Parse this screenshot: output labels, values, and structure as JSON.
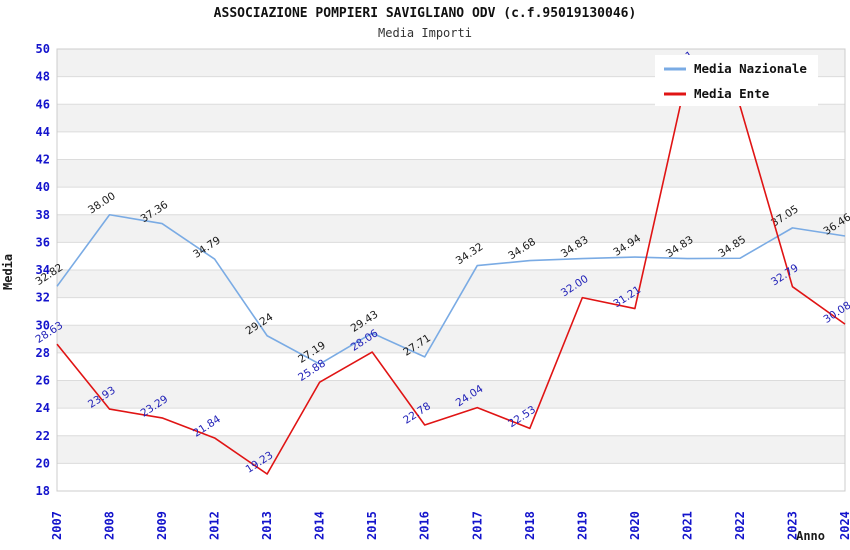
{
  "header": {
    "title": "ASSOCIAZIONE POMPIERI SAVIGLIANO ODV (c.f.95019130046)",
    "subtitle": "Media Importi"
  },
  "legend": {
    "position": "top-right",
    "items": [
      {
        "label": "Media Nazionale",
        "color": "#7aabe4"
      },
      {
        "label": "Media Ente",
        "color": "#e01414"
      }
    ]
  },
  "colors": {
    "background": "#ffffff",
    "band_fill": "#f2f2f2",
    "gridline": "#dcdcdc",
    "plot_border": "#cccccc",
    "tick_label": "#1414cc",
    "axis_title": "#1a1a1a",
    "national_line": "#7aabe4",
    "entity_line": "#e01414",
    "national_point_label": "#1a1a1a",
    "entity_point_label": "#2222b8"
  },
  "chart_data": {
    "type": "line",
    "title": "ASSOCIAZIONE POMPIERI SAVIGLIANO ODV (c.f.95019130046)",
    "subtitle": "Media Importi",
    "xlabel": "Anno",
    "ylabel": "Media",
    "categories": [
      "2007",
      "2008",
      "2009",
      "2012",
      "2013",
      "2014",
      "2015",
      "2016",
      "2017",
      "2018",
      "2019",
      "2020",
      "2021",
      "2022",
      "2023",
      "2024"
    ],
    "series": [
      {
        "name": "Media Nazionale",
        "color": "#7aabe4",
        "label_color": "#1a1a1a",
        "values": [
          32.82,
          38.0,
          37.36,
          34.79,
          29.24,
          27.19,
          29.43,
          27.71,
          34.32,
          34.68,
          34.83,
          34.94,
          34.83,
          34.85,
          37.05,
          36.46
        ]
      },
      {
        "name": "Media Ente",
        "color": "#e01414",
        "label_color": "#2222b8",
        "values": [
          28.63,
          23.93,
          23.29,
          21.84,
          19.23,
          25.88,
          28.06,
          22.78,
          24.04,
          22.53,
          32.0,
          31.21,
          48.21,
          45.9,
          32.79,
          30.08
        ]
      }
    ],
    "ylim": [
      18,
      50
    ],
    "y_step": 2,
    "y_ticks": [
      50,
      48,
      46,
      44,
      42,
      40,
      38,
      36,
      34,
      32,
      30,
      28,
      26,
      24,
      22,
      20,
      18
    ],
    "grid": "horizontal-bands",
    "legend_position": "top-right"
  }
}
